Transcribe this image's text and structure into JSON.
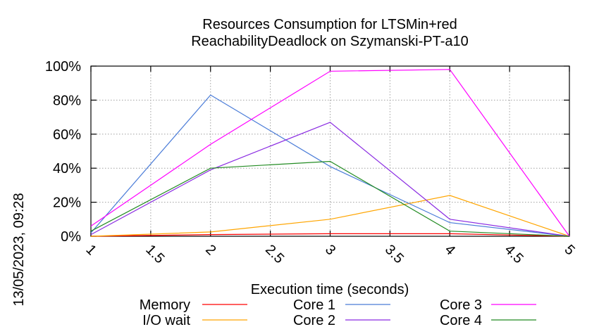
{
  "chart_data": {
    "type": "line",
    "title": "Resources Consumption for LTSMin+red",
    "subtitle": "ReachabilityDeadlock on Szymanski-PT-a10",
    "xlabel": "Execution time (seconds)",
    "ylabel": "",
    "timestamp": "13/05/2023, 09:28",
    "xlim": [
      1,
      5
    ],
    "ylim": [
      0,
      100
    ],
    "x_ticks": [
      "1",
      "1.5",
      "2",
      "2.5",
      "3",
      "3.5",
      "4",
      "4.5",
      "5"
    ],
    "y_ticks": [
      "0%",
      "20%",
      "40%",
      "60%",
      "80%",
      "100%"
    ],
    "grid": true,
    "legend_position": "bottom",
    "x": [
      1,
      2,
      3,
      4,
      5
    ],
    "series": [
      {
        "name": "Memory",
        "color": "#ff0000",
        "values": [
          0,
          1,
          1.5,
          1.5,
          0
        ]
      },
      {
        "name": "I/O wait",
        "color": "#ffa500",
        "values": [
          0,
          2.5,
          10,
          24,
          0
        ]
      },
      {
        "name": "Core 1",
        "color": "#4a7cd8",
        "values": [
          2,
          83,
          41,
          8,
          0
        ]
      },
      {
        "name": "Core 2",
        "color": "#8a2be2",
        "values": [
          1,
          39,
          67,
          10,
          0
        ]
      },
      {
        "name": "Core 3",
        "color": "#ff00ff",
        "values": [
          6,
          54,
          97,
          98,
          0
        ]
      },
      {
        "name": "Core 4",
        "color": "#228b22",
        "values": [
          3,
          40,
          44,
          3,
          0
        ]
      }
    ]
  }
}
